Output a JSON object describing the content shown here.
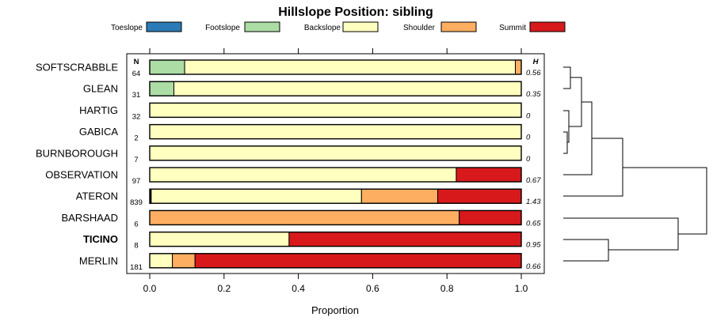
{
  "chart_data": {
    "type": "bar",
    "stacked": true,
    "orientation": "horizontal",
    "title": "Hillslope Position: sibling",
    "xlabel": "Proportion",
    "xlim": [
      0,
      1
    ],
    "xticks": [
      "0.0",
      "0.2",
      "0.4",
      "0.6",
      "0.8",
      "1.0"
    ],
    "xtick_values": [
      0,
      0.2,
      0.4,
      0.6,
      0.8,
      1.0
    ],
    "legend_position": "top",
    "n_header": "N",
    "h_header": "H",
    "categories_legend": [
      {
        "name": "Toeslope",
        "color": "#2c7bb6"
      },
      {
        "name": "Footslope",
        "color": "#abdda4"
      },
      {
        "name": "Backslope",
        "color": "#ffffbf"
      },
      {
        "name": "Shoulder",
        "color": "#fdae61"
      },
      {
        "name": "Summit",
        "color": "#d7191c"
      }
    ],
    "rows": [
      {
        "name": "SOFTSCRABBLE",
        "n": "64",
        "h": "0.56",
        "bold": false,
        "values": [
          0,
          0.094,
          0.89,
          0.016,
          0
        ]
      },
      {
        "name": "GLEAN",
        "n": "31",
        "h": "0.35",
        "bold": false,
        "values": [
          0,
          0.065,
          0.935,
          0,
          0
        ]
      },
      {
        "name": "HARTIG",
        "n": "32",
        "h": "0",
        "bold": false,
        "values": [
          0,
          0,
          1.0,
          0,
          0
        ]
      },
      {
        "name": "GABICA",
        "n": "2",
        "h": "0",
        "bold": false,
        "values": [
          0,
          0,
          1.0,
          0,
          0
        ]
      },
      {
        "name": "BURNBOROUGH",
        "n": "7",
        "h": "0",
        "bold": false,
        "values": [
          0,
          0,
          1.0,
          0,
          0
        ]
      },
      {
        "name": "OBSERVATION",
        "n": "97",
        "h": "0.67",
        "bold": false,
        "values": [
          0,
          0,
          0.825,
          0,
          0.175
        ]
      },
      {
        "name": "ATERON",
        "n": "839",
        "h": "1.43",
        "bold": false,
        "values": [
          0.002,
          0.002,
          0.566,
          0.205,
          0.225
        ]
      },
      {
        "name": "BARSHAAD",
        "n": "6",
        "h": "0.65",
        "bold": false,
        "values": [
          0,
          0,
          0,
          0.833,
          0.167
        ]
      },
      {
        "name": "TICINO",
        "n": "8",
        "h": "0.95",
        "bold": true,
        "values": [
          0,
          0,
          0.375,
          0,
          0.625
        ]
      },
      {
        "name": "MERLIN",
        "n": "181",
        "h": "0.66",
        "bold": false,
        "values": [
          0,
          0,
          0.061,
          0.061,
          0.878
        ]
      }
    ]
  }
}
